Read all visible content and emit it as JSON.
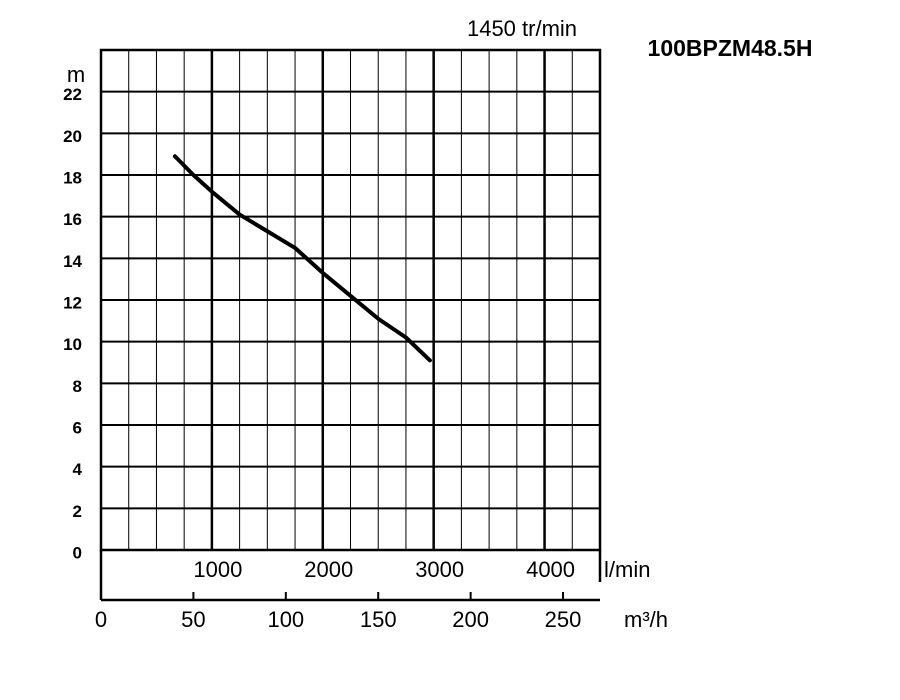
{
  "chart_data": {
    "type": "line",
    "title": "100BPZM48.5H",
    "subtitle": "1450 tr/min",
    "y_label": "m",
    "x_label": "m³/h",
    "x2_label": "l/min",
    "x": [
      40,
      50,
      60,
      75,
      90,
      105,
      120,
      135,
      150,
      165,
      178
    ],
    "series": [
      {
        "color": "#000000",
        "values": [
          18.9,
          18.0,
          17.2,
          16.1,
          15.3,
          14.5,
          13.3,
          12.2,
          11.1,
          10.2,
          9.1
        ]
      }
    ],
    "xlim": [
      0,
      270
    ],
    "xticks": [
      0,
      50,
      100,
      150,
      200,
      250
    ],
    "x2lim": [
      0,
      4500
    ],
    "x2ticks": [
      1000,
      2000,
      3000,
      4000
    ],
    "ylim": [
      0,
      24
    ],
    "yticks": [
      0,
      2,
      4,
      6,
      8,
      10,
      12,
      14,
      16,
      18,
      20,
      22
    ],
    "grid": true
  }
}
